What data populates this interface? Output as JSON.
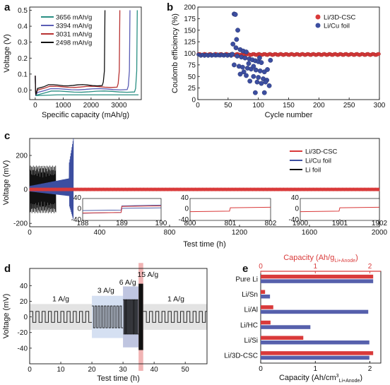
{
  "chart_data": [
    {
      "panel": "a",
      "type": "line",
      "xlabel": "Specific capacity (mAh/g)",
      "ylabel": "Voltage (V)",
      "xlim": [
        -200,
        3800
      ],
      "ylim": [
        -0.06,
        0.52
      ],
      "xticks": [
        0,
        1000,
        2000,
        3000
      ],
      "yticks": [
        0.0,
        0.1,
        0.2,
        0.3,
        0.4,
        0.5
      ],
      "ytick_labels": [
        "0.0",
        "0.1",
        "0.2",
        "0.3",
        "0.4",
        "0.5"
      ],
      "legend_position": "top-left",
      "series": [
        {
          "name": "3656 mAh/g",
          "color": "#2a8f83",
          "capacity": 3656,
          "plateau": -0.01
        },
        {
          "name": "3394 mAh/g",
          "color": "#5a5db5",
          "capacity": 3394,
          "plateau": 0.005
        },
        {
          "name": "3031 mAh/g",
          "color": "#b83232",
          "capacity": 3031,
          "plateau": 0.02
        },
        {
          "name": "2498 mAh/g",
          "color": "#111111",
          "capacity": 2498,
          "plateau": 0.03
        }
      ]
    },
    {
      "panel": "b",
      "type": "scatter",
      "xlabel": "Cycle number",
      "ylabel": "Coulomb efficiency (%)",
      "xlim": [
        0,
        300
      ],
      "ylim": [
        0,
        200
      ],
      "xticks": [
        0,
        50,
        100,
        150,
        200,
        250,
        300
      ],
      "yticks": [
        0,
        25,
        50,
        75,
        100,
        125,
        150,
        175,
        200
      ],
      "legend_position": "top-right",
      "series": [
        {
          "name": "Li/3D-CSC",
          "color": "#d93a3a",
          "points": "~98% for cycles 1-300"
        },
        {
          "name": "Li/Cu foil",
          "color": "#3c4ea0",
          "points": [
            [
              60,
              185
            ],
            [
              62,
              184
            ],
            [
              66,
              150
            ],
            [
              64,
              130
            ],
            [
              58,
              120
            ],
            [
              63,
              112
            ],
            [
              70,
              108
            ],
            [
              75,
              105
            ],
            [
              80,
              103
            ],
            [
              57,
              98
            ],
            [
              65,
              94
            ],
            [
              72,
              92
            ],
            [
              78,
              90
            ],
            [
              85,
              88
            ],
            [
              90,
              86
            ],
            [
              95,
              84
            ],
            [
              100,
              82
            ],
            [
              105,
              80
            ],
            [
              60,
              75
            ],
            [
              68,
              72
            ],
            [
              74,
              70
            ],
            [
              82,
              68
            ],
            [
              88,
              66
            ],
            [
              96,
              64
            ],
            [
              103,
              62
            ],
            [
              110,
              60
            ],
            [
              70,
              55
            ],
            [
              80,
              52
            ],
            [
              92,
              50
            ],
            [
              100,
              48
            ],
            [
              108,
              45
            ],
            [
              114,
              42
            ],
            [
              86,
              40
            ],
            [
              98,
              38
            ],
            [
              105,
              35
            ],
            [
              112,
              38
            ],
            [
              118,
              30
            ],
            [
              95,
              15
            ],
            [
              110,
              15
            ],
            [
              76,
              60
            ],
            [
              84,
              78
            ],
            [
              102,
              90
            ],
            [
              92,
              72
            ],
            [
              115,
              65
            ],
            [
              120,
              85
            ]
          ]
        }
      ]
    },
    {
      "panel": "c",
      "type": "line",
      "xlabel": "Test time (h)",
      "ylabel": "Voltage (mV)",
      "xlim": [
        0,
        2000
      ],
      "ylim": [
        -220,
        300
      ],
      "xticks": [
        0,
        400,
        800,
        1200,
        1600,
        2000
      ],
      "yticks": [
        -200,
        0,
        200
      ],
      "legend_position": "top-right",
      "series": [
        {
          "name": "Li/3D-CSC",
          "color": "#d93a3a",
          "amplitude": 10,
          "time_range": [
            0,
            2000
          ]
        },
        {
          "name": "Li/Cu foil",
          "color": "#3c4ea0",
          "amplitude": 50,
          "time_range": [
            0,
            250
          ]
        },
        {
          "name": "Li foil",
          "color": "#111111",
          "amplitude": 140,
          "time_range": [
            0,
            150
          ]
        }
      ],
      "insets": [
        {
          "xlim": [
            188,
            190
          ],
          "xticks": [
            188,
            189,
            190
          ],
          "yticks": [
            -40,
            0,
            40
          ],
          "ytick_labels": [
            "-40",
            "0",
            "40"
          ]
        },
        {
          "xlim": [
            800,
            802
          ],
          "xticks": [
            800,
            801,
            802
          ],
          "yticks": [
            -40,
            0,
            40
          ],
          "ytick_labels": [
            "-40",
            "0",
            "40"
          ]
        },
        {
          "xlim": [
            1900,
            1902
          ],
          "xticks": [
            1900,
            1901,
            1902
          ],
          "yticks": [
            -40,
            0,
            40
          ],
          "ytick_labels": [
            "-40",
            "0",
            "40"
          ]
        }
      ]
    },
    {
      "panel": "d",
      "type": "line",
      "xlabel": "Test time (h)",
      "ylabel": "Voltage (mV)",
      "xlim": [
        0,
        57
      ],
      "ylim": [
        -60,
        62
      ],
      "xticks": [
        0,
        10,
        20,
        30,
        40,
        50
      ],
      "yticks": [
        -40,
        -20,
        0,
        20,
        40
      ],
      "annotations": [
        "1 A/g",
        "3 A/g",
        "6 A/g",
        "15 A/g",
        "1 A/g"
      ],
      "segments": [
        {
          "label_index": 0,
          "time": [
            0,
            20
          ],
          "amplitude": 7,
          "shade": "#dadada"
        },
        {
          "label_index": 1,
          "time": [
            20,
            30
          ],
          "amplitude": 14,
          "shade": "#c7d6ee"
        },
        {
          "label_index": 2,
          "time": [
            30,
            35
          ],
          "amplitude": 22,
          "shade": "#aab2d6"
        },
        {
          "label_index": 3,
          "time": [
            35,
            36.5
          ],
          "amplitude": 42,
          "shade": "#ec9b9b"
        },
        {
          "label_index": 4,
          "time": [
            36.5,
            57
          ],
          "amplitude": 7,
          "shade": "#dadada"
        }
      ]
    },
    {
      "panel": "e",
      "type": "bar",
      "orientation": "horizontal",
      "categories": [
        "Pure Li",
        "Li/Sn",
        "Li/Al",
        "Li/HC",
        "Li/Si",
        "Li/3D-CSC"
      ],
      "top_axis_label_pre": "Capacity (Ah/g",
      "top_axis_label_sub": "Li+Anode",
      "top_axis_label_post": ")",
      "bottom_axis_label_pre": "Capacity (Ah/cm",
      "bottom_axis_label_sup": "3",
      "bottom_axis_label_sub": "Li+Anode",
      "bottom_axis_label_post": ")",
      "xlim": [
        0,
        2.2
      ],
      "xticks": [
        0,
        1,
        2
      ],
      "series": [
        {
          "name": "Capacity (Ah/g)",
          "axis": "top",
          "color": "#d93a3a",
          "values": [
            2.06,
            0.08,
            0.23,
            0.18,
            0.78,
            2.06
          ]
        },
        {
          "name": "Capacity (Ah/cm3)",
          "axis": "bottom",
          "color": "#5660ac",
          "values": [
            2.06,
            0.17,
            1.97,
            0.91,
            1.99,
            1.99
          ]
        }
      ]
    }
  ]
}
